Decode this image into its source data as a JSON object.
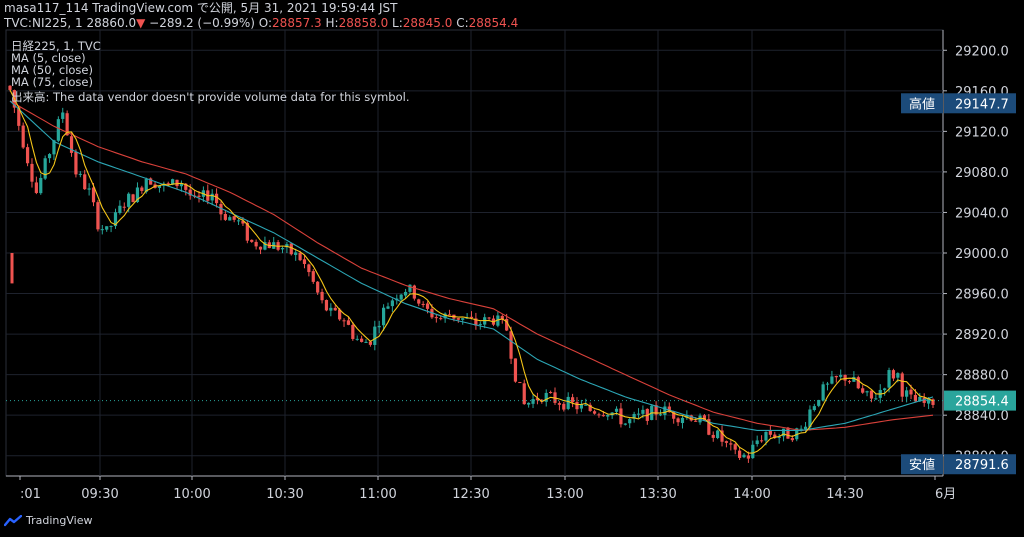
{
  "header": {
    "line1": "masa117_114 TradingView.com で公開, 5月 31, 2021 19:59:44 JST",
    "symbol": "TVC:NI225, 1",
    "last": "28860.0",
    "change": "−289.2 (−0.99%)",
    "open_label": "O:",
    "open": "28857.3",
    "high_label": "H:",
    "high": "28858.0",
    "low_label": "L:",
    "low": "28845.0",
    "close_label": "C:",
    "close": "28854.4"
  },
  "legend": [
    "日経225, 1, TVC",
    "MA (5, close)",
    "MA (50, close)",
    "MA (75, close)",
    "出来高: The data vendor doesn't provide volume data for this symbol."
  ],
  "badges": {
    "high_label": "高値",
    "high_value": "29147.7",
    "low_label": "安値",
    "low_value": "28791.6",
    "current_value": "28854.4"
  },
  "brand": "TradingView",
  "colors": {
    "background": "#000000",
    "up": "#26a69a",
    "down": "#ef5350",
    "ma5": "#f5c518",
    "ma50": "#2ca6b5",
    "ma75": "#d9413a",
    "badge_bg": "#1c4b7a",
    "current_badge_bg": "#2aa59c"
  },
  "chart_data": {
    "type": "candlestick",
    "title": "日経225, 1, TVC",
    "y_ticks": [
      "28800.0",
      "28840.0",
      "28880.0",
      "28920.0",
      "28960.0",
      "29000.0",
      "29040.0",
      "29080.0",
      "29120.0",
      "29160.0",
      "29200.0"
    ],
    "x_ticks": [
      ":01",
      "09:30",
      "10:00",
      "10:30",
      "11:00",
      "12:30",
      "13:00",
      "13:30",
      "14:00",
      "14:30",
      "6月"
    ],
    "ylim": [
      28780,
      29220
    ],
    "grid": true,
    "series": [
      {
        "name": "MA (5, close)"
      },
      {
        "name": "MA (50, close)"
      },
      {
        "name": "MA (75, close)"
      }
    ],
    "close_path": [
      [
        0,
        29160
      ],
      [
        3,
        29110
      ],
      [
        6,
        29060
      ],
      [
        9,
        29100
      ],
      [
        12,
        29140
      ],
      [
        15,
        29080
      ],
      [
        18,
        29060
      ],
      [
        20,
        29030
      ],
      [
        22,
        29020
      ],
      [
        26,
        29050
      ],
      [
        29,
        29060
      ],
      [
        31,
        29075
      ],
      [
        35,
        29065
      ],
      [
        39,
        29070
      ],
      [
        42,
        29050
      ],
      [
        46,
        29060
      ],
      [
        48,
        29040
      ],
      [
        52,
        29030
      ],
      [
        55,
        29010
      ],
      [
        58,
        29010
      ],
      [
        62,
        29005
      ],
      [
        66,
        28995
      ],
      [
        68,
        28980
      ],
      [
        71,
        28950
      ],
      [
        73,
        28940
      ],
      [
        76,
        28935
      ],
      [
        78,
        28920
      ],
      [
        80,
        28910
      ],
      [
        82,
        28915
      ],
      [
        84,
        28935
      ],
      [
        86,
        28950
      ],
      [
        88,
        28960
      ],
      [
        90,
        28965
      ],
      [
        92,
        28960
      ],
      [
        94,
        28945
      ],
      [
        96,
        28940
      ],
      [
        98,
        28935
      ],
      [
        100,
        28940
      ],
      [
        103,
        28935
      ],
      [
        106,
        28930
      ],
      [
        110,
        28935
      ],
      [
        113,
        28925
      ],
      [
        115,
        28880
      ],
      [
        117,
        28850
      ],
      [
        119,
        28855
      ],
      [
        121,
        28860
      ],
      [
        124,
        28855
      ],
      [
        128,
        28850
      ],
      [
        132,
        28845
      ],
      [
        136,
        28845
      ],
      [
        138,
        28840
      ],
      [
        140,
        28832
      ],
      [
        144,
        28840
      ],
      [
        148,
        28845
      ],
      [
        152,
        28840
      ],
      [
        155,
        28840
      ],
      [
        158,
        28830
      ],
      [
        160,
        28823
      ],
      [
        162,
        28815
      ],
      [
        165,
        28800
      ],
      [
        168,
        28800
      ],
      [
        170,
        28815
      ],
      [
        172,
        28823
      ],
      [
        175,
        28820
      ],
      [
        178,
        28822
      ],
      [
        180,
        28825
      ],
      [
        182,
        28845
      ],
      [
        184,
        28860
      ],
      [
        186,
        28868
      ],
      [
        188,
        28875
      ],
      [
        190,
        28878
      ],
      [
        192,
        28872
      ],
      [
        194,
        28860
      ],
      [
        196,
        28855
      ],
      [
        198,
        28865
      ],
      [
        200,
        28880
      ],
      [
        202,
        28880
      ],
      [
        203,
        28865
      ],
      [
        205,
        28855
      ],
      [
        207,
        28852
      ],
      [
        209,
        28850
      ],
      [
        210,
        28854
      ]
    ],
    "ma50_path": [
      [
        0,
        29150
      ],
      [
        10,
        29110
      ],
      [
        20,
        29090
      ],
      [
        30,
        29075
      ],
      [
        40,
        29060
      ],
      [
        50,
        29040
      ],
      [
        60,
        29020
      ],
      [
        70,
        28995
      ],
      [
        80,
        28970
      ],
      [
        90,
        28950
      ],
      [
        100,
        28935
      ],
      [
        110,
        28925
      ],
      [
        120,
        28895
      ],
      [
        130,
        28875
      ],
      [
        140,
        28858
      ],
      [
        150,
        28845
      ],
      [
        160,
        28832
      ],
      [
        170,
        28825
      ],
      [
        180,
        28825
      ],
      [
        190,
        28832
      ],
      [
        200,
        28845
      ],
      [
        210,
        28858
      ]
    ],
    "ma75_path": [
      [
        0,
        29150
      ],
      [
        10,
        29125
      ],
      [
        20,
        29105
      ],
      [
        30,
        29090
      ],
      [
        40,
        29078
      ],
      [
        50,
        29060
      ],
      [
        60,
        29038
      ],
      [
        70,
        29010
      ],
      [
        80,
        28985
      ],
      [
        90,
        28968
      ],
      [
        100,
        28955
      ],
      [
        110,
        28945
      ],
      [
        120,
        28920
      ],
      [
        130,
        28900
      ],
      [
        140,
        28880
      ],
      [
        150,
        28860
      ],
      [
        160,
        28843
      ],
      [
        170,
        28832
      ],
      [
        180,
        28825
      ],
      [
        190,
        28828
      ],
      [
        200,
        28835
      ],
      [
        210,
        28840
      ]
    ]
  }
}
